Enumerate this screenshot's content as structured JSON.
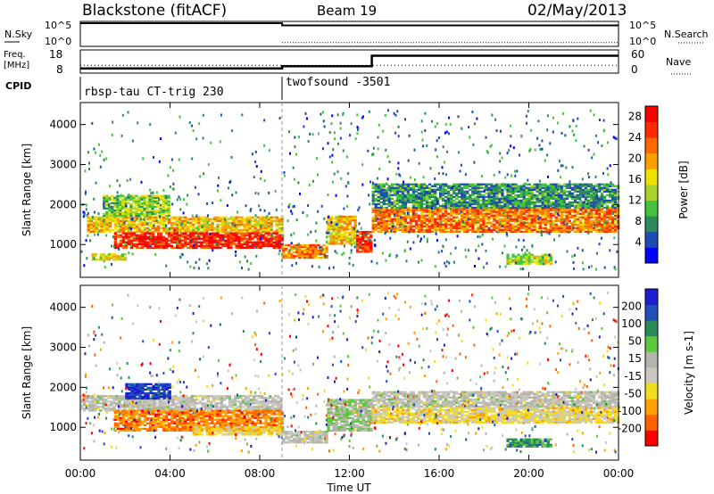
{
  "header": {
    "station": "Blackstone (fitACF)",
    "beam": "Beam 19",
    "date": "02/May/2013"
  },
  "colors": {
    "power_scale": [
      "#0000ff",
      "#1e4bb4",
      "#2e8a5c",
      "#44c43c",
      "#a8d32a",
      "#f0e000",
      "#ffa000",
      "#ff6a00",
      "#ff2a00",
      "#ff0000"
    ],
    "velocity_scale": [
      "#1c1cd0",
      "#2050b8",
      "#2a8a5a",
      "#5ec83c",
      "#b4b4aa",
      "#c8c8c0",
      "#f2dc20",
      "#ffa000",
      "#ff6000",
      "#ff0000"
    ]
  },
  "chart_data": [
    {
      "type": "line",
      "name": "noise-panel",
      "left_label": "N.Sky",
      "right_label": "N.Search",
      "left_ticks": [
        "10^5",
        "10^0"
      ],
      "right_ticks": [
        "10^5",
        "10^0"
      ],
      "series": [
        {
          "name": "N.Sky",
          "x": [
            "00:00",
            "09:00",
            "09:00",
            "24:00"
          ],
          "values": [
            100000,
            100000,
            30000,
            30000
          ]
        },
        {
          "name": "N.Search",
          "x": [
            "09:00",
            "24:00"
          ],
          "values": [
            3,
            3
          ]
        }
      ]
    },
    {
      "type": "line",
      "name": "frequency-panel",
      "left_label": "Freq. [MHz]",
      "right_label": "Nave",
      "left_ticks": [
        "18",
        "8"
      ],
      "right_ticks": [
        "60",
        "0"
      ],
      "ylim": [
        8,
        18
      ],
      "series": [
        {
          "name": "Freq.",
          "x": [
            "00:00",
            "09:00",
            "09:00",
            "13:00",
            "13:00",
            "24:00"
          ],
          "values": [
            10.0,
            10.0,
            11.0,
            11.0,
            15.5,
            15.5
          ]
        },
        {
          "name": "Nave",
          "x": [
            "00:00",
            "24:00"
          ],
          "values": [
            20,
            20
          ]
        }
      ]
    },
    {
      "type": "table",
      "name": "cpid-panel",
      "label": "CPID",
      "segments": [
        {
          "start": "00:00",
          "end": "09:00",
          "label": "rbsp-tau CT-trig 230"
        },
        {
          "start": "09:00",
          "end": "24:00",
          "label": "twofsound -3501"
        }
      ]
    },
    {
      "type": "heatmap",
      "name": "power-panel",
      "ylabel": "Slant Range [km]",
      "yticks": [
        1000,
        2000,
        3000,
        4000
      ],
      "ylim": [
        180,
        4550
      ],
      "colorbar": {
        "label": "Power [dB]",
        "ticks": [
          4,
          8,
          12,
          16,
          20,
          24,
          28
        ],
        "range": [
          0,
          30
        ]
      },
      "bands": [
        {
          "t0": 0.3,
          "t1": 9.0,
          "r0": 1300,
          "r1": 1700,
          "v": 18
        },
        {
          "t0": 1.5,
          "t1": 9.0,
          "r0": 900,
          "r1": 1300,
          "v": 27
        },
        {
          "t0": 1.0,
          "t1": 4.0,
          "r0": 1700,
          "r1": 2200,
          "v": 12
        },
        {
          "t0": 9.0,
          "t1": 11.0,
          "r0": 650,
          "r1": 1000,
          "v": 22
        },
        {
          "t0": 11.0,
          "t1": 12.3,
          "r0": 1000,
          "r1": 1700,
          "v": 18
        },
        {
          "t0": 12.3,
          "t1": 13.0,
          "r0": 800,
          "r1": 1300,
          "v": 26
        },
        {
          "t0": 13.0,
          "t1": 24.0,
          "r0": 1300,
          "r1": 1900,
          "v": 22
        },
        {
          "t0": 13.0,
          "t1": 24.0,
          "r0": 1900,
          "r1": 2500,
          "v": 8
        },
        {
          "t0": 0.5,
          "t1": 2.0,
          "r0": 600,
          "r1": 750,
          "v": 16
        },
        {
          "t0": 19.0,
          "t1": 21.0,
          "r0": 500,
          "r1": 750,
          "v": 14
        }
      ],
      "scatter_level": 5
    },
    {
      "type": "heatmap",
      "name": "velocity-panel",
      "ylabel": "Slant Range [km]",
      "yticks": [
        1000,
        2000,
        3000,
        4000
      ],
      "ylim": [
        180,
        4550
      ],
      "colorbar": {
        "label": "Velocity [m s-1]",
        "ticks": [
          200,
          100,
          50,
          15,
          -15,
          -50,
          -100,
          -200
        ],
        "range": [
          -250,
          250
        ]
      },
      "bands": [
        {
          "t0": 0.0,
          "t1": 9.0,
          "r0": 1400,
          "r1": 1800,
          "v": 0
        },
        {
          "t0": 1.5,
          "t1": 9.0,
          "r0": 900,
          "r1": 1400,
          "v": -150
        },
        {
          "t0": 2.0,
          "t1": 4.0,
          "r0": 1700,
          "r1": 2100,
          "v": 200
        },
        {
          "t0": 5.0,
          "t1": 9.0,
          "r0": 800,
          "r1": 1000,
          "v": -75
        },
        {
          "t0": 9.0,
          "t1": 11.0,
          "r0": 600,
          "r1": 900,
          "v": 0
        },
        {
          "t0": 11.0,
          "t1": 13.0,
          "r0": 900,
          "r1": 1700,
          "v": 40
        },
        {
          "t0": 13.0,
          "t1": 24.0,
          "r0": 1500,
          "r1": 1900,
          "v": 0
        },
        {
          "t0": 13.0,
          "t1": 24.0,
          "r0": 1100,
          "r1": 1500,
          "v": -60
        },
        {
          "t0": 19.0,
          "t1": 21.0,
          "r0": 500,
          "r1": 700,
          "v": 120
        }
      ],
      "scatter_level": 0
    }
  ],
  "xaxis": {
    "label": "Time UT",
    "ticks": [
      "00:00",
      "04:00",
      "08:00",
      "12:00",
      "16:00",
      "20:00",
      "00:00"
    ],
    "range_hours": [
      0,
      24
    ]
  }
}
